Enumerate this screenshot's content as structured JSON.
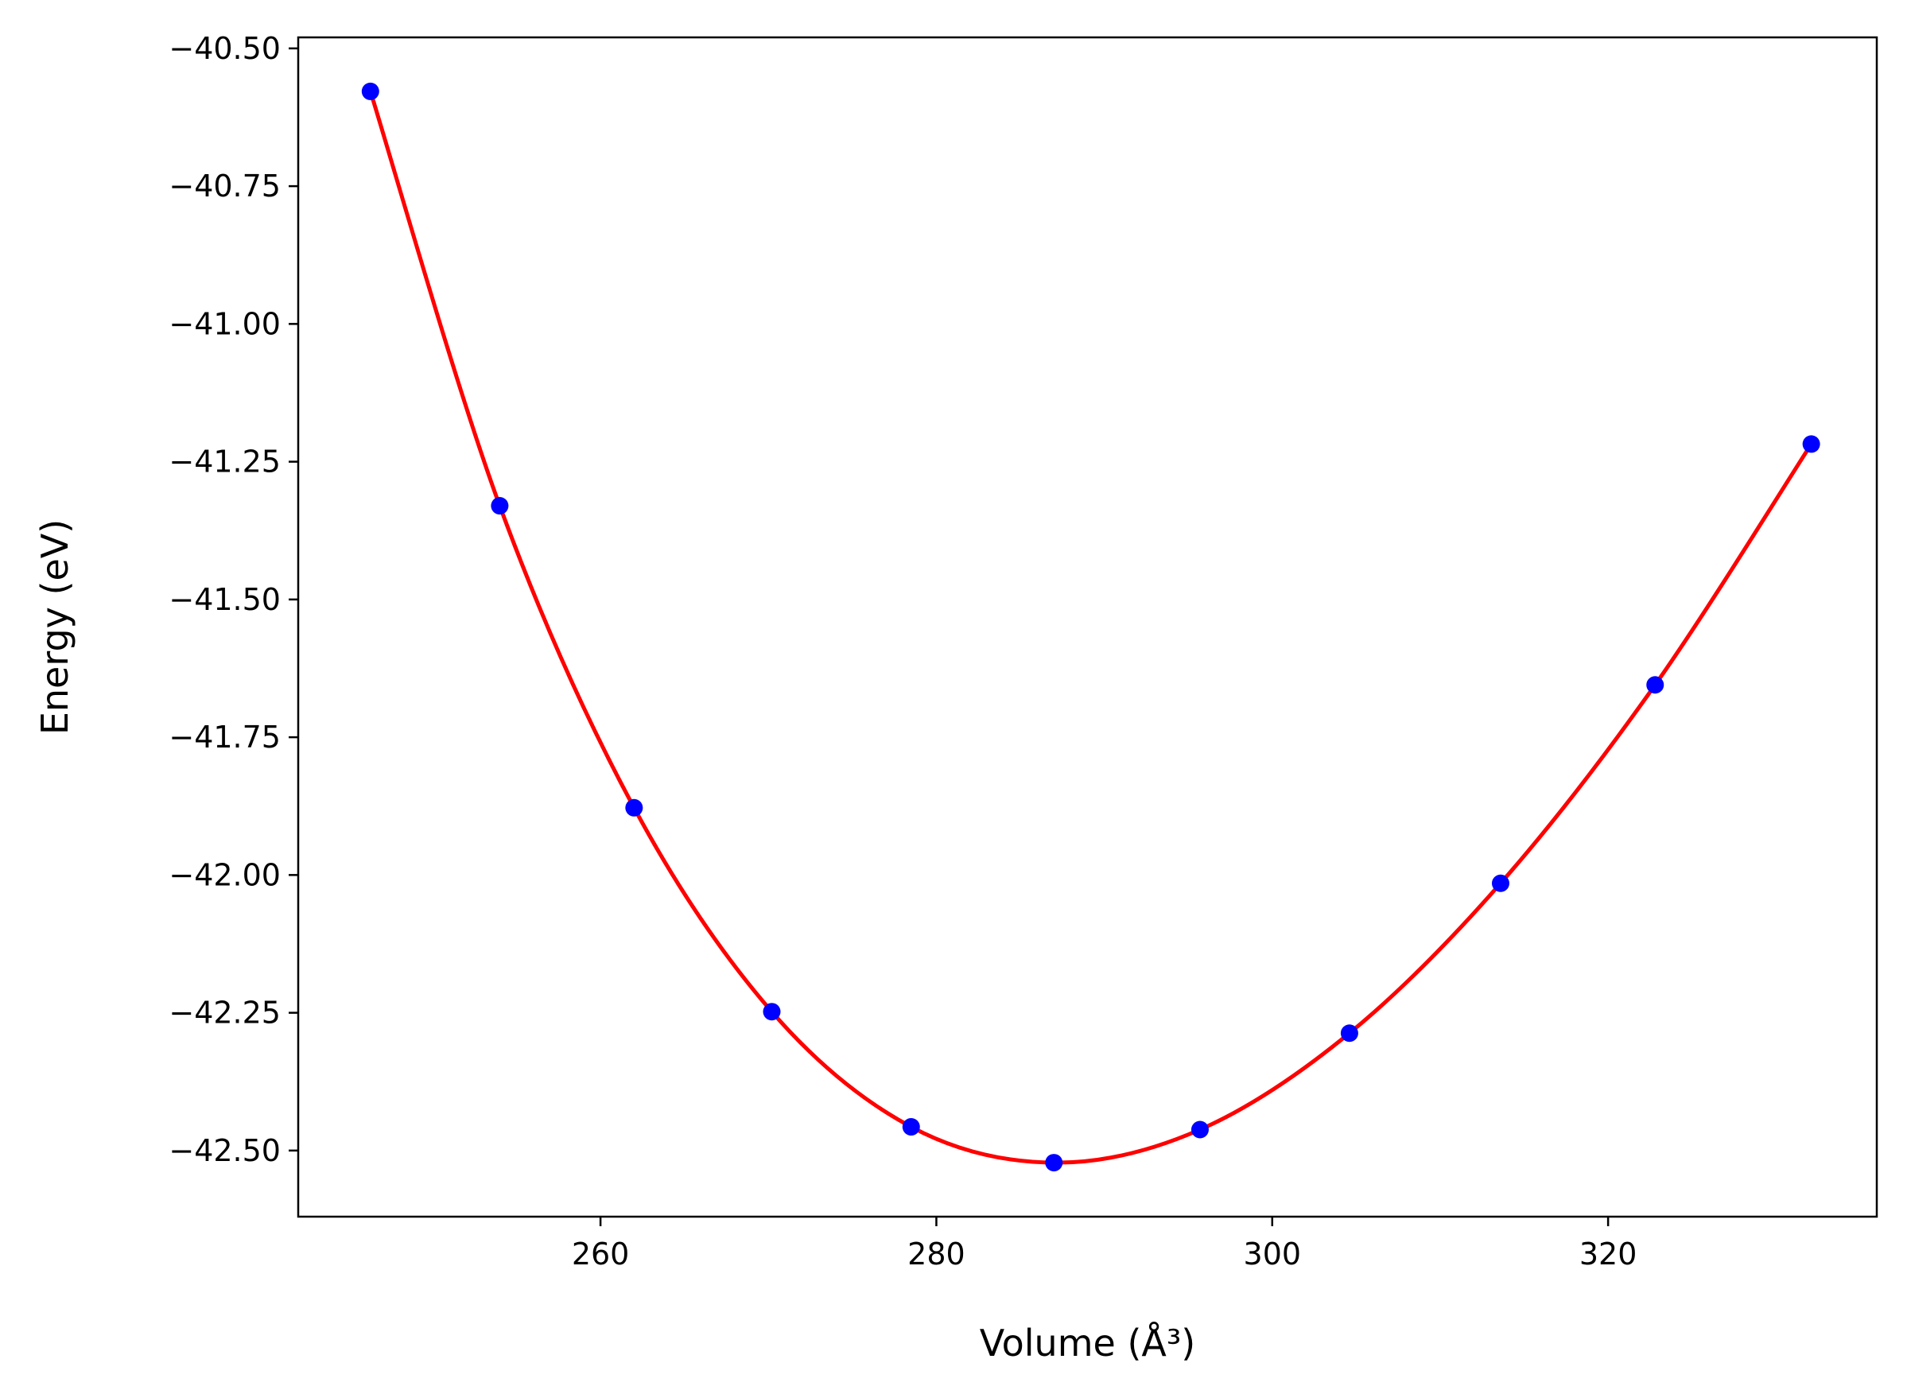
{
  "chart_data": {
    "type": "scatter",
    "title": "",
    "xlabel": "Volume (Å³)",
    "ylabel": "Energy (eV)",
    "xlim": [
      242,
      336
    ],
    "ylim": [
      -42.62,
      -40.48
    ],
    "x_ticks": [
      260,
      280,
      300,
      320
    ],
    "x_tick_labels": [
      "260",
      "280",
      "300",
      "320"
    ],
    "y_ticks": [
      -40.5,
      -40.75,
      -41.0,
      -41.25,
      -41.5,
      -41.75,
      -42.0,
      -42.25,
      -42.5
    ],
    "y_tick_labels": [
      "−40.50",
      "−40.75",
      "−41.00",
      "−41.25",
      "−41.50",
      "−41.75",
      "−42.00",
      "−42.25",
      "−42.50"
    ],
    "grid": false,
    "series": [
      {
        "kind": "points",
        "color": "#0000ff",
        "x": [
          246.3,
          254.0,
          262.0,
          270.2,
          278.5,
          287.0,
          295.7,
          304.6,
          313.6,
          322.8,
          332.1
        ],
        "y": [
          -40.578,
          -41.33,
          -41.878,
          -42.248,
          -42.457,
          -42.522,
          -42.462,
          -42.287,
          -42.015,
          -41.655,
          -41.218
        ]
      },
      {
        "kind": "fit-curve",
        "color": "#ff0000",
        "x": [
          246.3,
          254.0,
          262.0,
          270.2,
          278.5,
          287.0,
          295.7,
          304.6,
          313.6,
          322.8,
          332.1
        ],
        "y": [
          -40.578,
          -41.33,
          -41.878,
          -42.248,
          -42.457,
          -42.522,
          -42.462,
          -42.287,
          -42.015,
          -41.655,
          -41.218
        ]
      }
    ]
  }
}
